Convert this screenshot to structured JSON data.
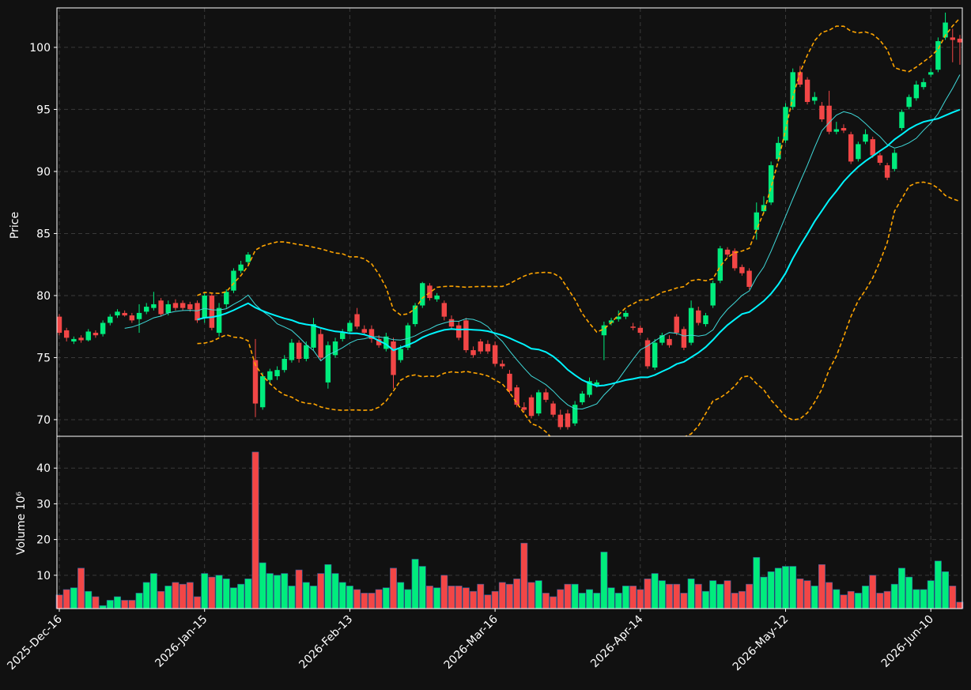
{
  "chart_data": {
    "type": "candlestick",
    "price_ylabel": "Price",
    "volume_ylabel": "Volume  10⁶",
    "categories": [
      "2025-Dec-16",
      null,
      null,
      null,
      null,
      null,
      null,
      null,
      null,
      null,
      null,
      null,
      null,
      null,
      null,
      null,
      null,
      null,
      null,
      null,
      "2026-Jan-15",
      null,
      null,
      null,
      null,
      null,
      null,
      null,
      null,
      null,
      null,
      null,
      null,
      null,
      null,
      null,
      null,
      null,
      null,
      null,
      "2026-Feb-13",
      null,
      null,
      null,
      null,
      null,
      null,
      null,
      null,
      null,
      null,
      null,
      null,
      null,
      null,
      null,
      null,
      null,
      null,
      null,
      "2026-Mar-16",
      null,
      null,
      null,
      null,
      null,
      null,
      null,
      null,
      null,
      null,
      null,
      null,
      null,
      null,
      null,
      null,
      null,
      null,
      null,
      "2026-Apr-14",
      null,
      null,
      null,
      null,
      null,
      null,
      null,
      null,
      null,
      null,
      null,
      null,
      null,
      null,
      null,
      null,
      null,
      null,
      null,
      "2026-May-12",
      null,
      null,
      null,
      null,
      null,
      null,
      null,
      null,
      null,
      null,
      null,
      null,
      null,
      null,
      null,
      null,
      null,
      null,
      null,
      "2026-Jun-10",
      null,
      null,
      null,
      null
    ],
    "open": [
      78.3,
      77.2,
      76.3,
      76.6,
      76.4,
      77.0,
      76.9,
      77.8,
      78.4,
      78.6,
      78.4,
      78.1,
      78.7,
      79.0,
      79.6,
      78.6,
      79.4,
      79.4,
      79.3,
      79.4,
      78.2,
      80.0,
      77.0,
      79.3,
      80.4,
      82.0,
      82.7,
      74.8,
      71.0,
      73.2,
      73.5,
      74.0,
      74.8,
      76.2,
      74.9,
      75.8,
      76.9,
      73.0,
      75.2,
      76.5,
      77.1,
      78.5,
      77.3,
      77.3,
      76.5,
      75.7,
      76.3,
      74.8,
      75.8,
      77.7,
      79.2,
      80.8,
      79.7,
      79.4,
      78.1,
      77.6,
      78.0,
      75.6,
      76.3,
      76.1,
      76.0,
      74.5,
      73.7,
      72.6,
      71.0,
      71.8,
      70.5,
      72.2,
      71.3,
      70.4,
      70.5,
      69.7,
      71.4,
      72.0,
      72.8,
      76.8,
      77.8,
      78.1,
      78.3,
      77.5,
      77.4,
      76.4,
      74.2,
      76.2,
      76.5,
      78.3,
      77.3,
      76.2,
      78.8,
      77.7,
      79.2,
      81.2,
      83.7,
      83.6,
      82.3,
      82.0,
      85.3,
      86.8,
      87.5,
      91.0,
      92.5,
      95.2,
      98.0,
      97.4,
      95.7,
      95.3,
      95.3,
      93.2,
      93.5,
      93.0,
      91.0,
      92.4,
      92.6,
      91.3,
      90.5,
      90.2,
      93.5,
      95.2,
      95.9,
      96.8,
      97.8,
      98.2,
      100.8,
      100.8,
      100.7
    ],
    "high": [
      78.5,
      77.4,
      76.7,
      76.8,
      77.3,
      77.2,
      78.0,
      78.5,
      78.9,
      78.8,
      78.6,
      79.3,
      79.4,
      80.3,
      79.8,
      79.6,
      79.7,
      79.6,
      79.5,
      79.6,
      80.2,
      80.2,
      79.4,
      80.5,
      82.2,
      82.8,
      83.5,
      76.5,
      73.8,
      74.1,
      74.3,
      75.2,
      76.5,
      76.4,
      76.3,
      78.2,
      77.3,
      76.3,
      76.6,
      77.3,
      78.0,
      79.0,
      77.6,
      77.6,
      76.8,
      77.0,
      76.6,
      76.0,
      77.8,
      79.4,
      81.1,
      81.0,
      80.2,
      79.6,
      78.4,
      77.9,
      78.2,
      75.9,
      76.5,
      76.4,
      76.3,
      74.8,
      74.0,
      72.8,
      71.4,
      72.0,
      72.4,
      72.5,
      71.5,
      70.8,
      70.8,
      71.5,
      72.3,
      73.4,
      73.2,
      77.9,
      78.2,
      78.8,
      78.8,
      77.8,
      77.6,
      76.6,
      76.5,
      77.0,
      76.8,
      78.5,
      77.5,
      79.6,
      79.1,
      78.6,
      81.2,
      84.0,
      83.9,
      83.8,
      82.5,
      82.2,
      87.5,
      88.0,
      90.8,
      92.8,
      95.5,
      98.3,
      98.5,
      97.6,
      96.4,
      95.6,
      96.5,
      94.0,
      93.8,
      93.2,
      92.4,
      93.4,
      92.8,
      91.5,
      90.7,
      91.8,
      95.0,
      96.2,
      97.3,
      97.5,
      98.3,
      100.8,
      102.8,
      101.5,
      101.0
    ],
    "low": [
      76.8,
      76.3,
      76.1,
      76.2,
      76.3,
      76.6,
      76.7,
      77.6,
      78.2,
      78.3,
      77.8,
      77.0,
      78.5,
      78.8,
      78.3,
      78.4,
      78.8,
      78.8,
      78.7,
      77.8,
      77.8,
      77.2,
      76.7,
      79.0,
      80.2,
      81.8,
      82.5,
      70.2,
      70.8,
      72.8,
      73.2,
      73.8,
      74.6,
      74.6,
      74.7,
      75.6,
      74.8,
      72.5,
      75.0,
      76.3,
      76.9,
      77.3,
      76.8,
      76.2,
      75.8,
      75.5,
      72.5,
      74.6,
      75.6,
      77.5,
      79.0,
      79.6,
      79.5,
      78.0,
      77.3,
      76.4,
      75.4,
      75.0,
      75.3,
      75.3,
      74.3,
      74.1,
      72.1,
      71.0,
      70.6,
      70.1,
      70.3,
      71.4,
      70.2,
      69.2,
      69.2,
      69.5,
      71.2,
      71.8,
      72.6,
      74.8,
      77.6,
      77.9,
      78.1,
      77.2,
      76.8,
      74.1,
      74.0,
      76.0,
      75.8,
      76.8,
      75.6,
      76.0,
      77.6,
      77.5,
      79.0,
      81.0,
      83.1,
      82.0,
      81.6,
      80.5,
      84.5,
      86.6,
      87.3,
      90.8,
      92.3,
      95.0,
      96.8,
      95.4,
      95.4,
      94.0,
      93.0,
      93.0,
      93.1,
      90.6,
      90.8,
      92.2,
      91.1,
      90.5,
      89.3,
      90.0,
      93.3,
      95.0,
      95.7,
      96.6,
      97.6,
      98.0,
      100.6,
      98.8,
      98.6
    ],
    "close": [
      77.0,
      76.6,
      76.5,
      76.4,
      77.1,
      76.8,
      77.8,
      78.3,
      78.7,
      78.4,
      78.0,
      78.6,
      79.1,
      79.3,
      78.5,
      79.3,
      79.0,
      79.0,
      78.9,
      78.0,
      80.0,
      77.4,
      79.0,
      80.3,
      82.0,
      82.5,
      83.3,
      71.3,
      73.5,
      73.9,
      74.0,
      74.9,
      76.2,
      74.9,
      76.0,
      77.7,
      75.0,
      76.0,
      76.3,
      77.0,
      77.8,
      77.5,
      77.0,
      76.5,
      76.0,
      76.7,
      73.6,
      75.7,
      77.6,
      79.2,
      81.0,
      79.8,
      80.0,
      78.3,
      77.5,
      76.6,
      75.6,
      75.2,
      75.5,
      75.5,
      74.5,
      74.3,
      72.3,
      71.2,
      70.8,
      70.3,
      72.2,
      71.6,
      70.4,
      69.4,
      69.4,
      71.2,
      72.1,
      73.1,
      73.0,
      77.6,
      78.0,
      78.3,
      78.6,
      77.4,
      77.0,
      74.3,
      76.2,
      76.8,
      76.0,
      77.0,
      75.8,
      79.0,
      77.8,
      78.4,
      81.0,
      83.8,
      83.3,
      82.2,
      81.8,
      80.7,
      86.7,
      87.3,
      90.5,
      92.3,
      95.2,
      98.0,
      97.0,
      95.6,
      96.0,
      94.2,
      93.2,
      93.4,
      93.3,
      90.8,
      92.2,
      93.0,
      91.3,
      90.7,
      89.5,
      91.5,
      94.8,
      96.0,
      97.0,
      97.2,
      98.0,
      100.5,
      102.0,
      100.6,
      100.4
    ],
    "volume": [
      4.5,
      6,
      6.5,
      12,
      5.5,
      4,
      1.5,
      3,
      4,
      3,
      3,
      5,
      8,
      10.5,
      5.5,
      7,
      8,
      7.5,
      8,
      4,
      10.5,
      9.5,
      10,
      9,
      6.5,
      7.5,
      9,
      44.5,
      13.5,
      10.5,
      10,
      10.5,
      7,
      11.5,
      8,
      7,
      10.5,
      13,
      10.5,
      8,
      7,
      6,
      5,
      5,
      6,
      6.5,
      12,
      8,
      6,
      14.5,
      12.5,
      7,
      6.5,
      10,
      7,
      7,
      6.5,
      5.5,
      7.5,
      4.5,
      5.5,
      8,
      7.5,
      9,
      19,
      8,
      8.5,
      5,
      4,
      6,
      7.5,
      7.5,
      5,
      6,
      5,
      16.5,
      6.5,
      5,
      7,
      7,
      6,
      9,
      10.5,
      8.5,
      7.5,
      7.5,
      5,
      9,
      7.5,
      5.5,
      8.5,
      7.5,
      8.5,
      5,
      5.5,
      7.5,
      15,
      9.5,
      11,
      12,
      12.5,
      12.5,
      9,
      8.5,
      7,
      13,
      8,
      6,
      4.5,
      5.5,
      5,
      7,
      10,
      5,
      5.5,
      7.5,
      12,
      9.5,
      6,
      6,
      8.5,
      14,
      11,
      7,
      2.5
    ],
    "up_color": "#00ec7d",
    "down_color": "#f24646",
    "mav": [
      {
        "period": 10,
        "color": "#3fd9d9",
        "width": 1
      },
      {
        "period": 20,
        "color": "#00f5ff",
        "width": 2
      }
    ],
    "bollinger": {
      "period": 20,
      "std": 2,
      "color": "#ffa500"
    },
    "ylim": [
      68.66,
      103.18
    ],
    "yticks": [
      70,
      75,
      80,
      85,
      90,
      95,
      100
    ],
    "volume_ylim": [
      0.67,
      48.9
    ],
    "volume_yticks": [
      10,
      20,
      30,
      40
    ],
    "grid": true
  }
}
